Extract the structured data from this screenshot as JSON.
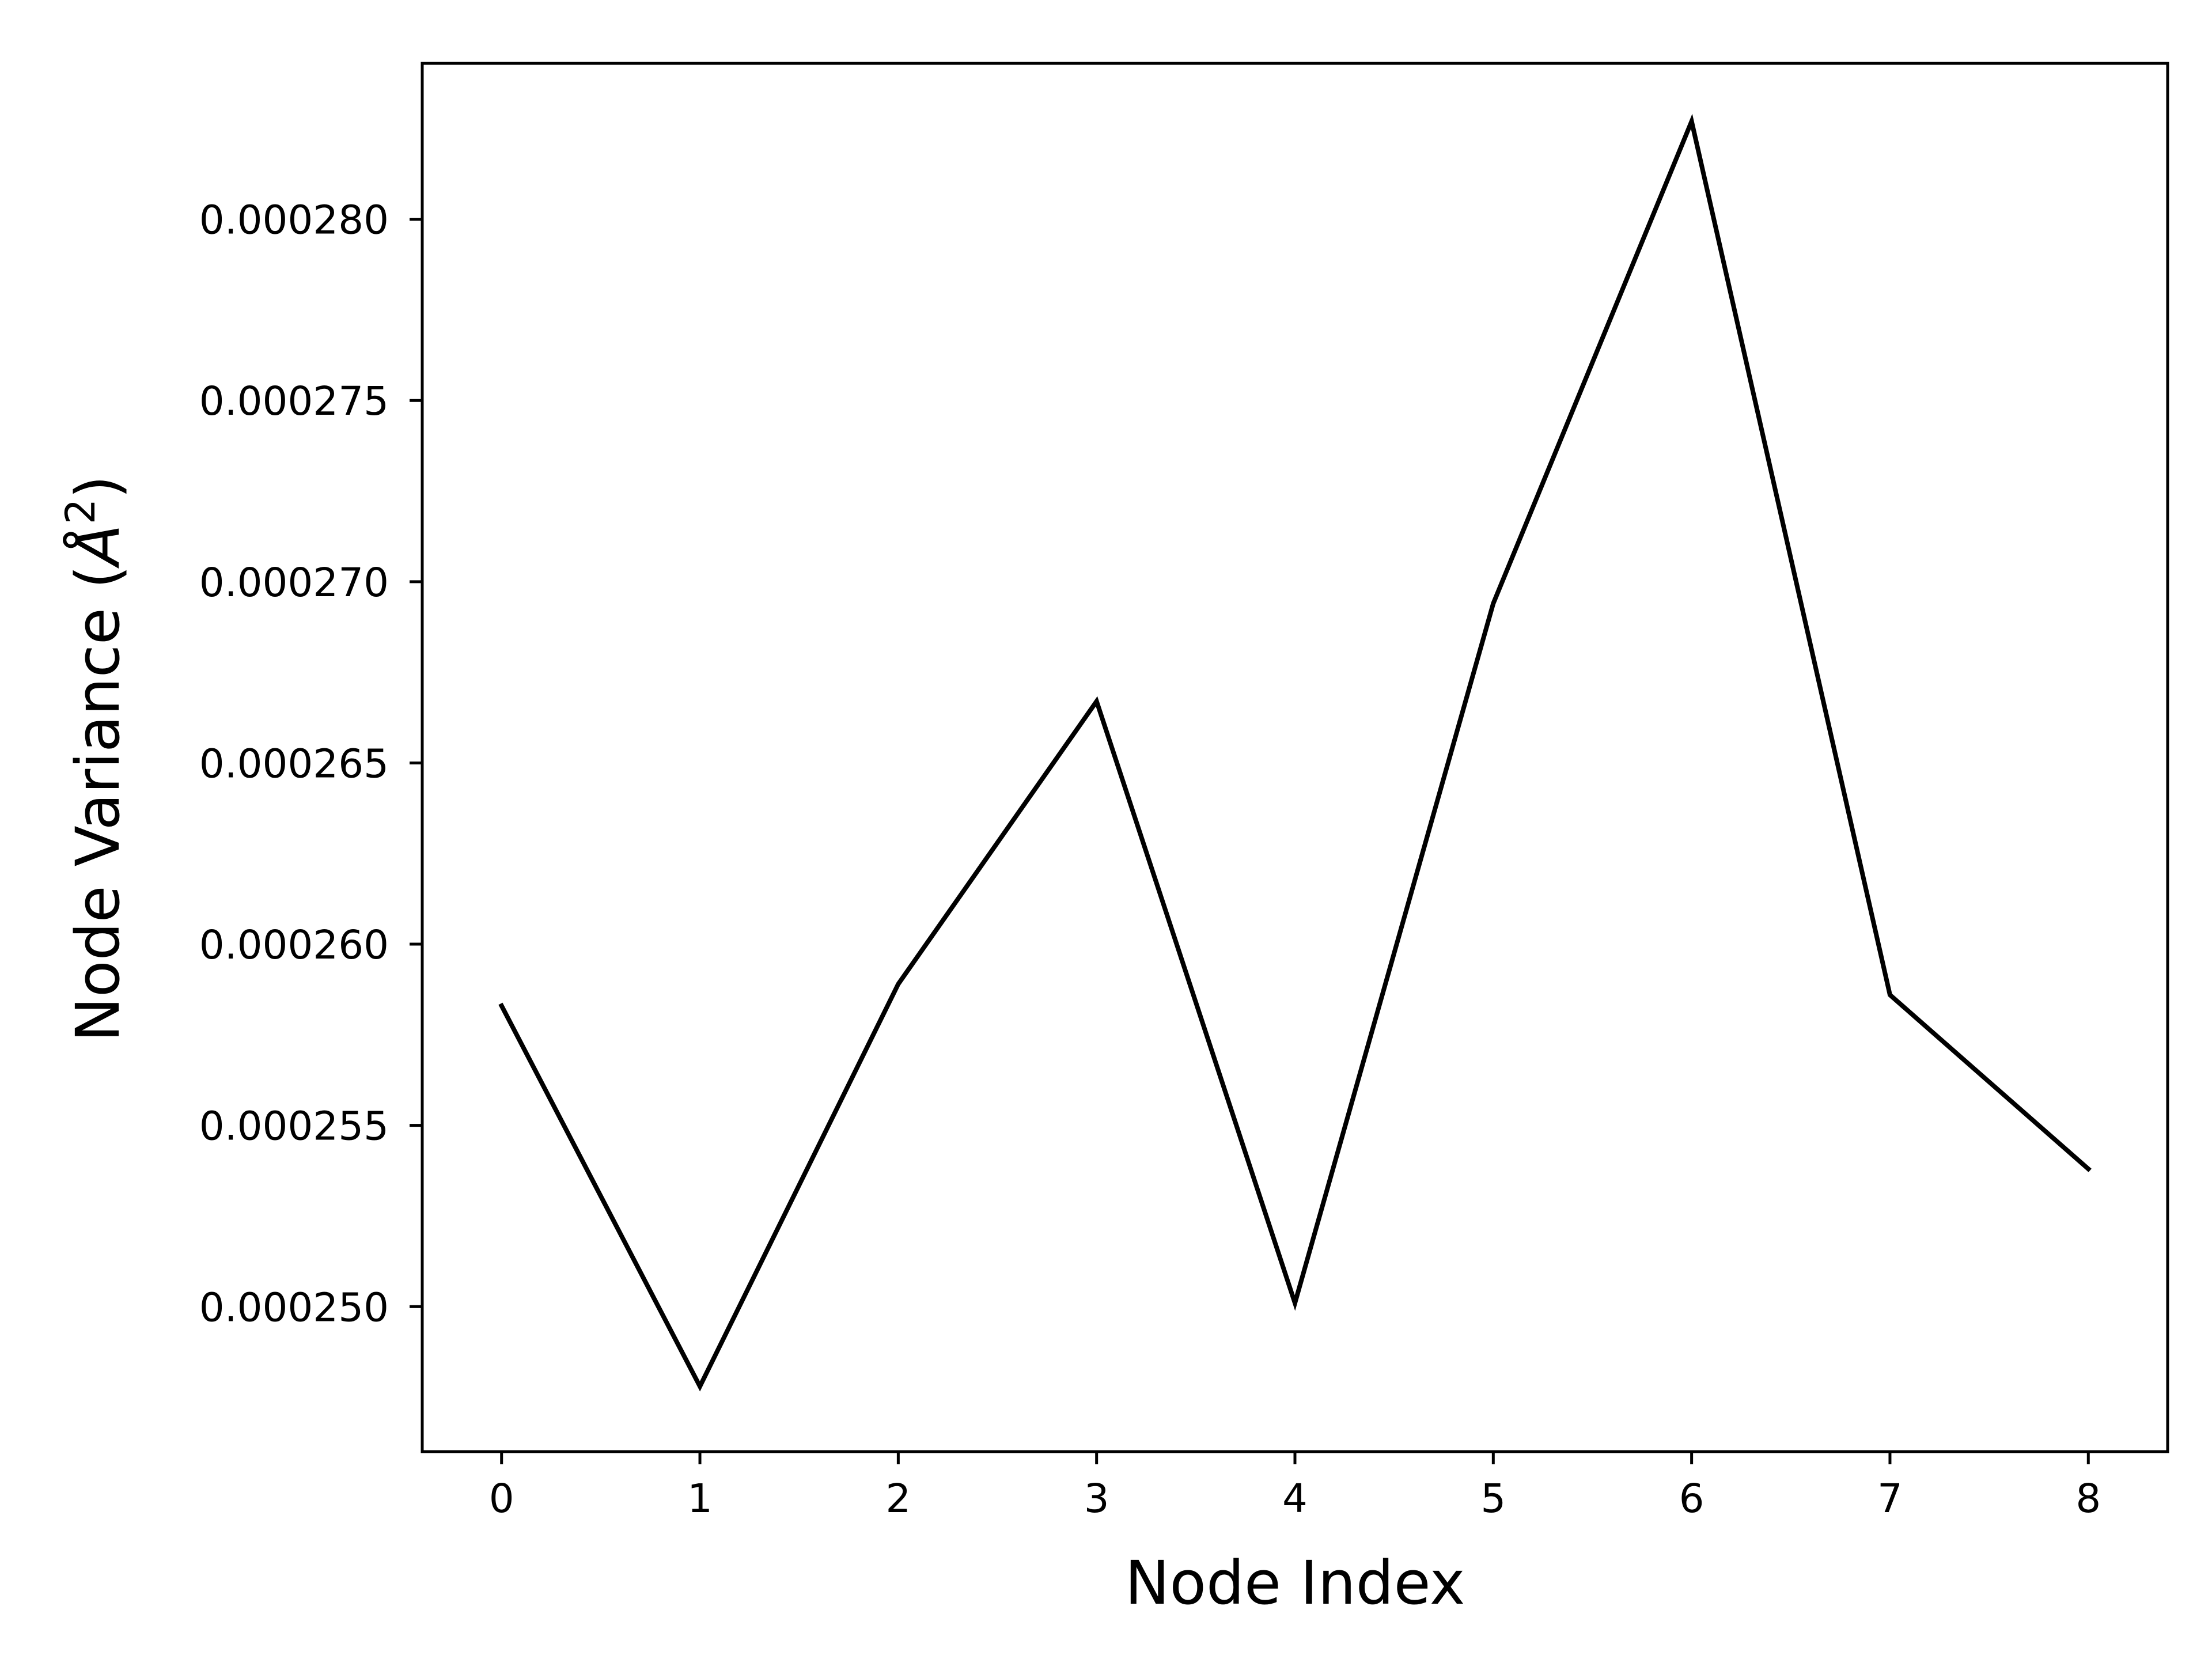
{
  "chart_data": {
    "type": "line",
    "title": "",
    "xlabel": "Node Index",
    "ylabel_main": "Node Variance (",
    "ylabel_unit": "Å",
    "ylabel_sup": "2",
    "ylabel_close": ")",
    "x": [
      0,
      1,
      2,
      3,
      4,
      5,
      6,
      7,
      8
    ],
    "series": [
      {
        "values": [
          0.0002583,
          0.0002478,
          0.0002589,
          0.0002667,
          0.0002501,
          0.0002694,
          0.0002827,
          0.0002586,
          0.0002538
        ]
      }
    ],
    "xticks": [
      0,
      1,
      2,
      3,
      4,
      5,
      6,
      7,
      8
    ],
    "xtick_labels": [
      "0",
      "1",
      "2",
      "3",
      "4",
      "5",
      "6",
      "7",
      "8"
    ],
    "yticks": [
      0.00025,
      0.000255,
      0.00026,
      0.000265,
      0.00027,
      0.000275,
      0.00028
    ],
    "ytick_labels": [
      "0.000250",
      "0.000255",
      "0.000260",
      "0.000265",
      "0.000270",
      "0.000275",
      "0.000280"
    ],
    "xlim": [
      -0.4,
      8.4
    ],
    "ylim": [
      0.000246,
      0.0002843
    ],
    "grid": false,
    "line_color": "#000000"
  }
}
